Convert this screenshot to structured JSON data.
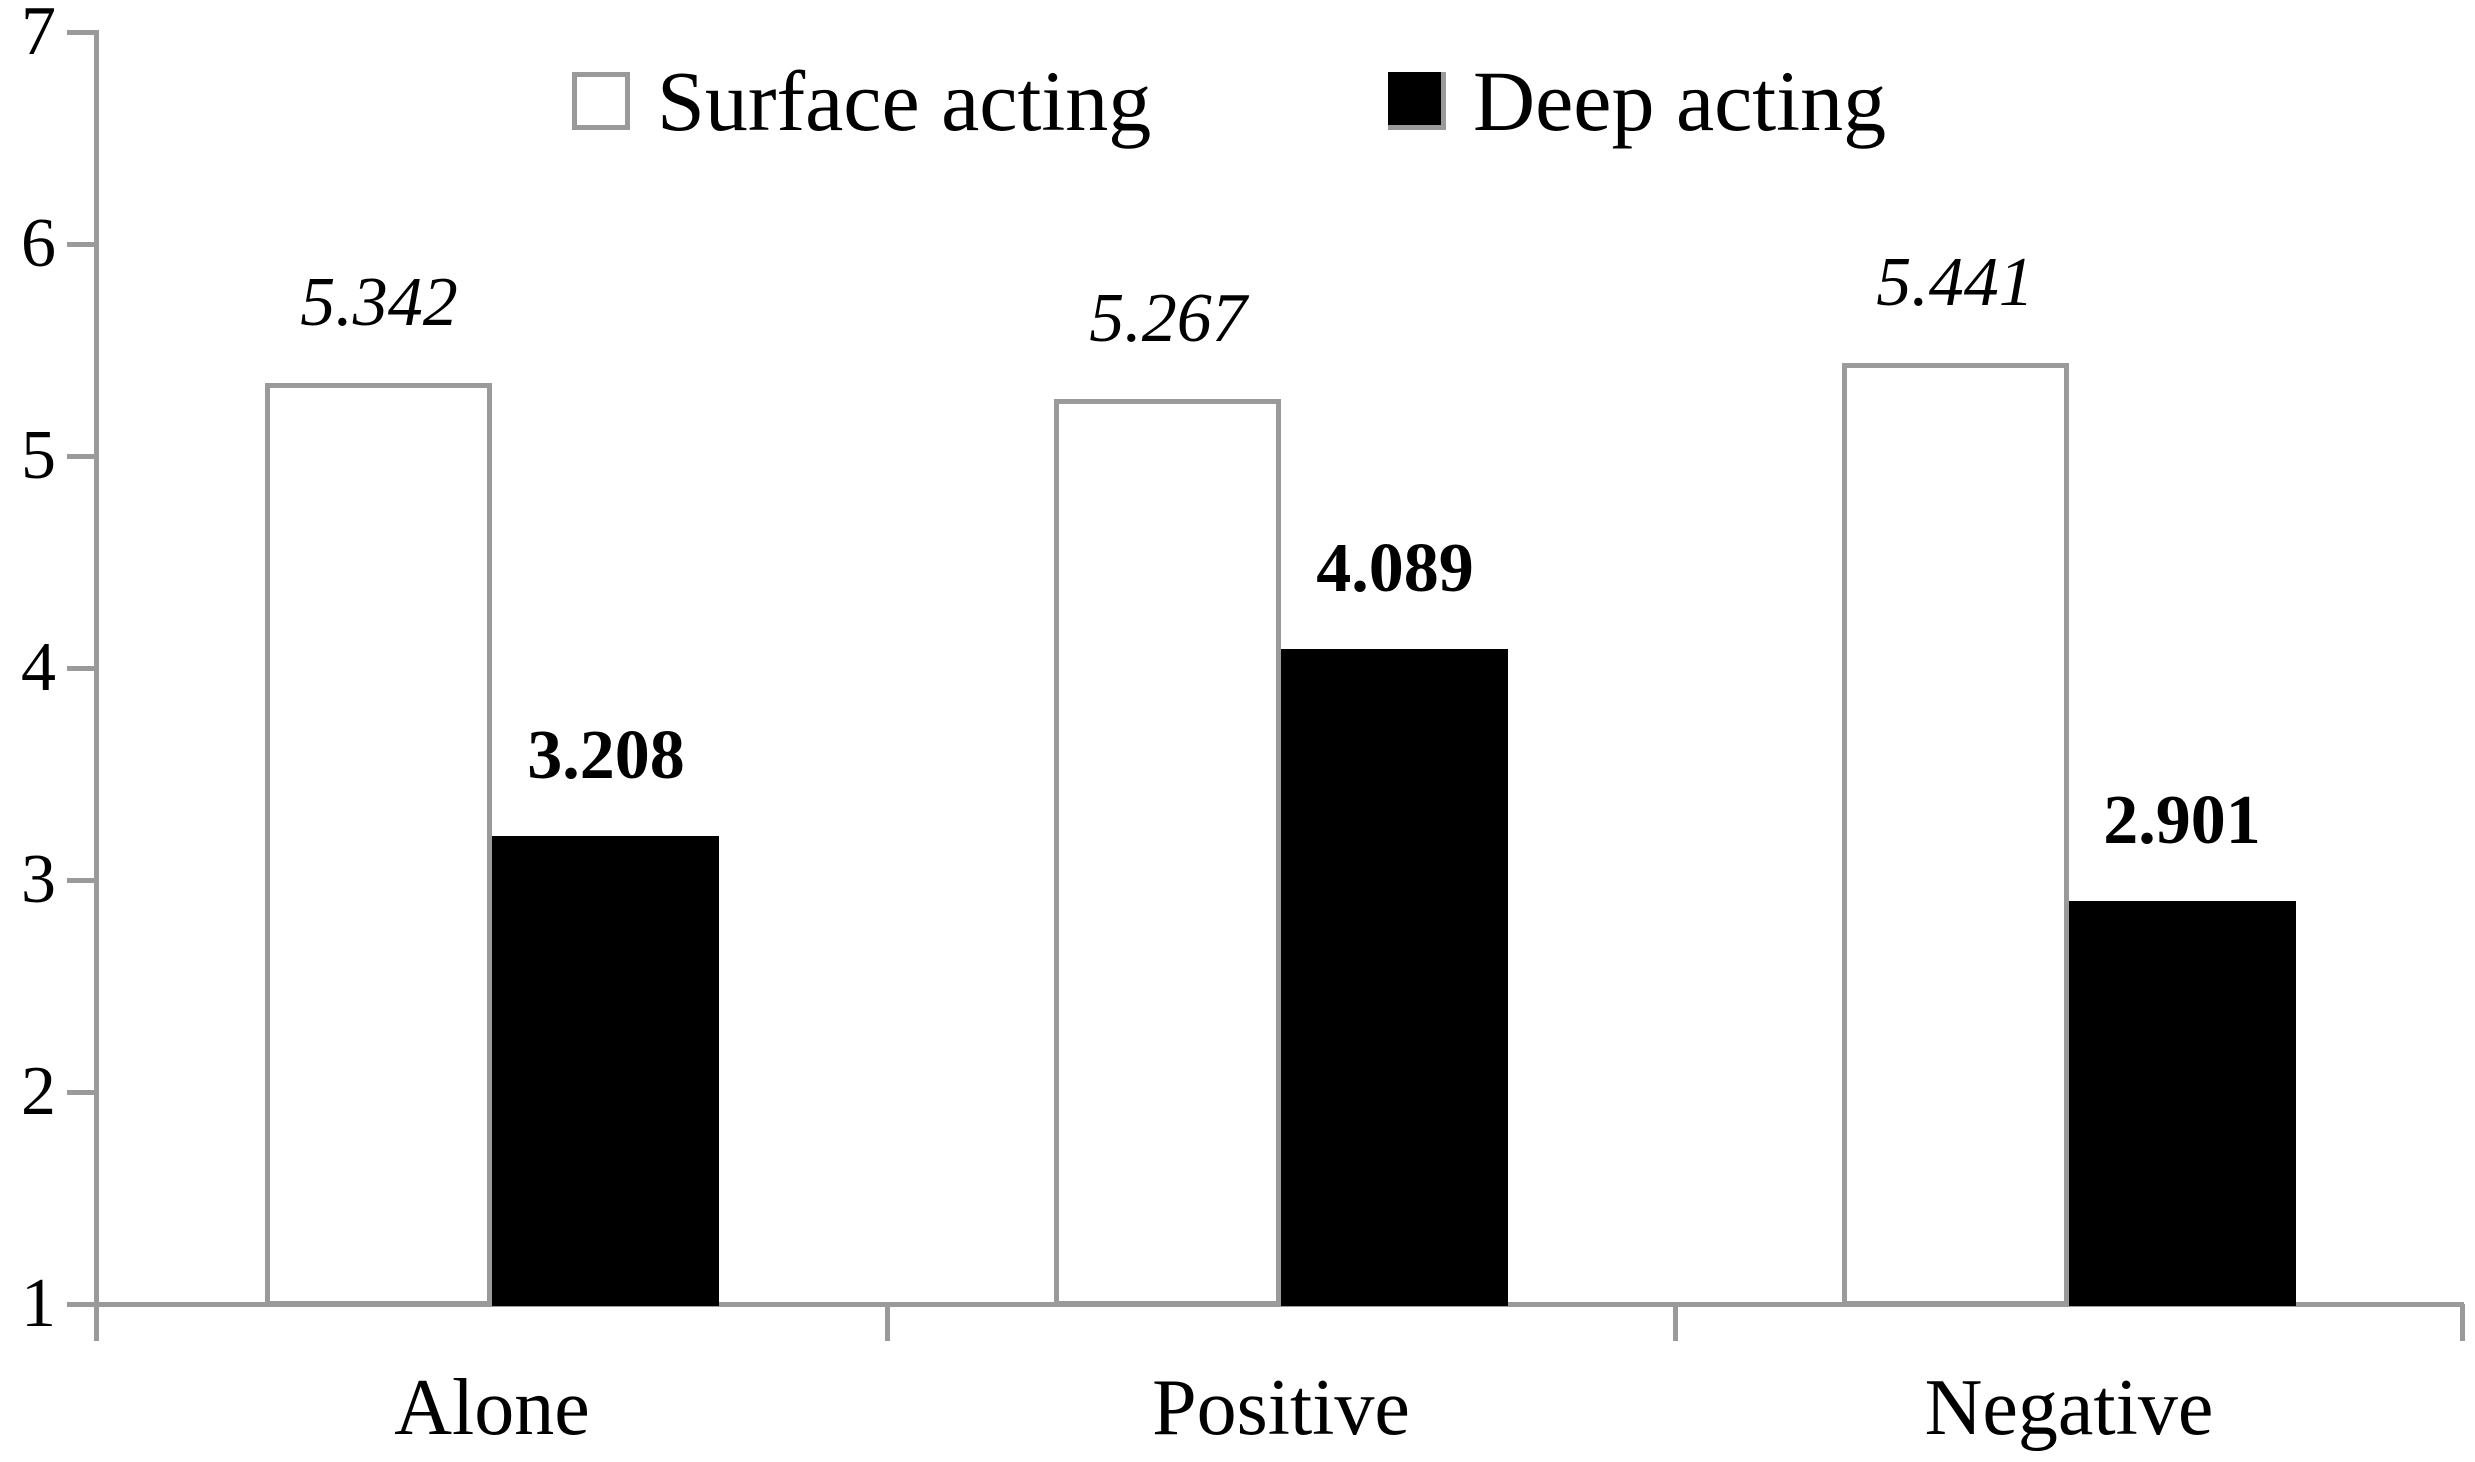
{
  "chart_data": {
    "type": "bar",
    "title": "",
    "categories": [
      "Alone",
      "Positive",
      "Negative"
    ],
    "series": [
      {
        "name": "Surface acting",
        "values": [
          5.342,
          5.267,
          5.441
        ],
        "value_labels": [
          "5.342",
          "5.267",
          "5.441"
        ],
        "fill": "#ffffff",
        "border": "#9a9a9a",
        "label_style": "italic"
      },
      {
        "name": "Deep acting",
        "values": [
          3.208,
          4.089,
          2.901
        ],
        "value_labels": [
          "3.208",
          "4.089",
          "2.901"
        ],
        "fill": "#000000",
        "border": "#9a9a9a",
        "label_style": "bold"
      }
    ],
    "ylim": [
      1,
      7
    ],
    "yticks": [
      1,
      2,
      3,
      4,
      5,
      6,
      7
    ],
    "xlabel": "",
    "ylabel": "",
    "grid": false,
    "legend_position": "top-center",
    "axis_color": "#9a9a9a",
    "text_color": "#000000"
  }
}
